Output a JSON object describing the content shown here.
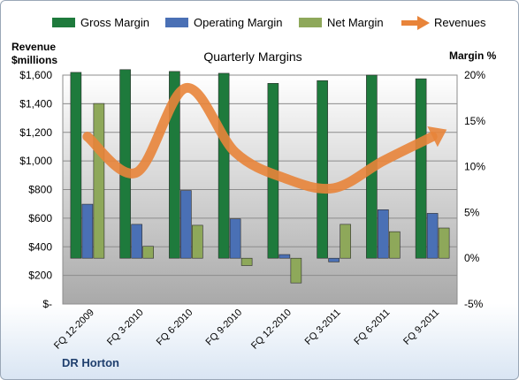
{
  "chart_data": {
    "type": "bar",
    "title": "Quarterly Margins",
    "company": "DR Horton",
    "left_axis_title_line1": "Revenue",
    "left_axis_title_line2": "$millions",
    "right_axis_title": "Margin %",
    "categories": [
      "FQ 12-2009",
      "FQ 3-2010",
      "FQ 6-2010",
      "FQ 9-2010",
      "FQ 12-2010",
      "FQ 3-2011",
      "FQ 6-2011",
      "FQ 9-2011"
    ],
    "left_ylim": [
      0,
      1600
    ],
    "left_ticks": [
      0,
      200,
      400,
      600,
      800,
      1000,
      1200,
      1400,
      1600
    ],
    "left_tick_labels": [
      "$-",
      "$200",
      "$400",
      "$600",
      "$800",
      "$1,000",
      "$1,200",
      "$1,400",
      "$1,600"
    ],
    "right_ylim": [
      -5,
      20
    ],
    "right_ticks": [
      -5,
      0,
      5,
      10,
      15,
      20
    ],
    "right_tick_labels": [
      "-5%",
      "0%",
      "5%",
      "10%",
      "15%",
      "20%"
    ],
    "series": [
      {
        "name": "Gross Margin",
        "axis": "right",
        "kind": "bar",
        "color": "#1e7a3c",
        "values": [
          20.3,
          20.6,
          20.4,
          20.2,
          19.1,
          19.4,
          20.0,
          19.6
        ]
      },
      {
        "name": "Operating Margin",
        "axis": "right",
        "kind": "bar",
        "color": "#4a70b5",
        "values": [
          5.9,
          3.7,
          7.4,
          4.3,
          0.4,
          -0.4,
          5.3,
          4.9
        ]
      },
      {
        "name": "Net Margin",
        "axis": "right",
        "kind": "bar",
        "color": "#8ea85a",
        "values": [
          16.9,
          1.3,
          3.6,
          -0.8,
          -2.7,
          3.7,
          2.9,
          3.3
        ]
      },
      {
        "name": "Revenues",
        "axis": "left",
        "kind": "line",
        "color": "#e8843a",
        "values": [
          1170,
          920,
          1510,
          1060,
          880,
          810,
          1000,
          1170
        ]
      }
    ],
    "grid": true,
    "legend": "top"
  }
}
